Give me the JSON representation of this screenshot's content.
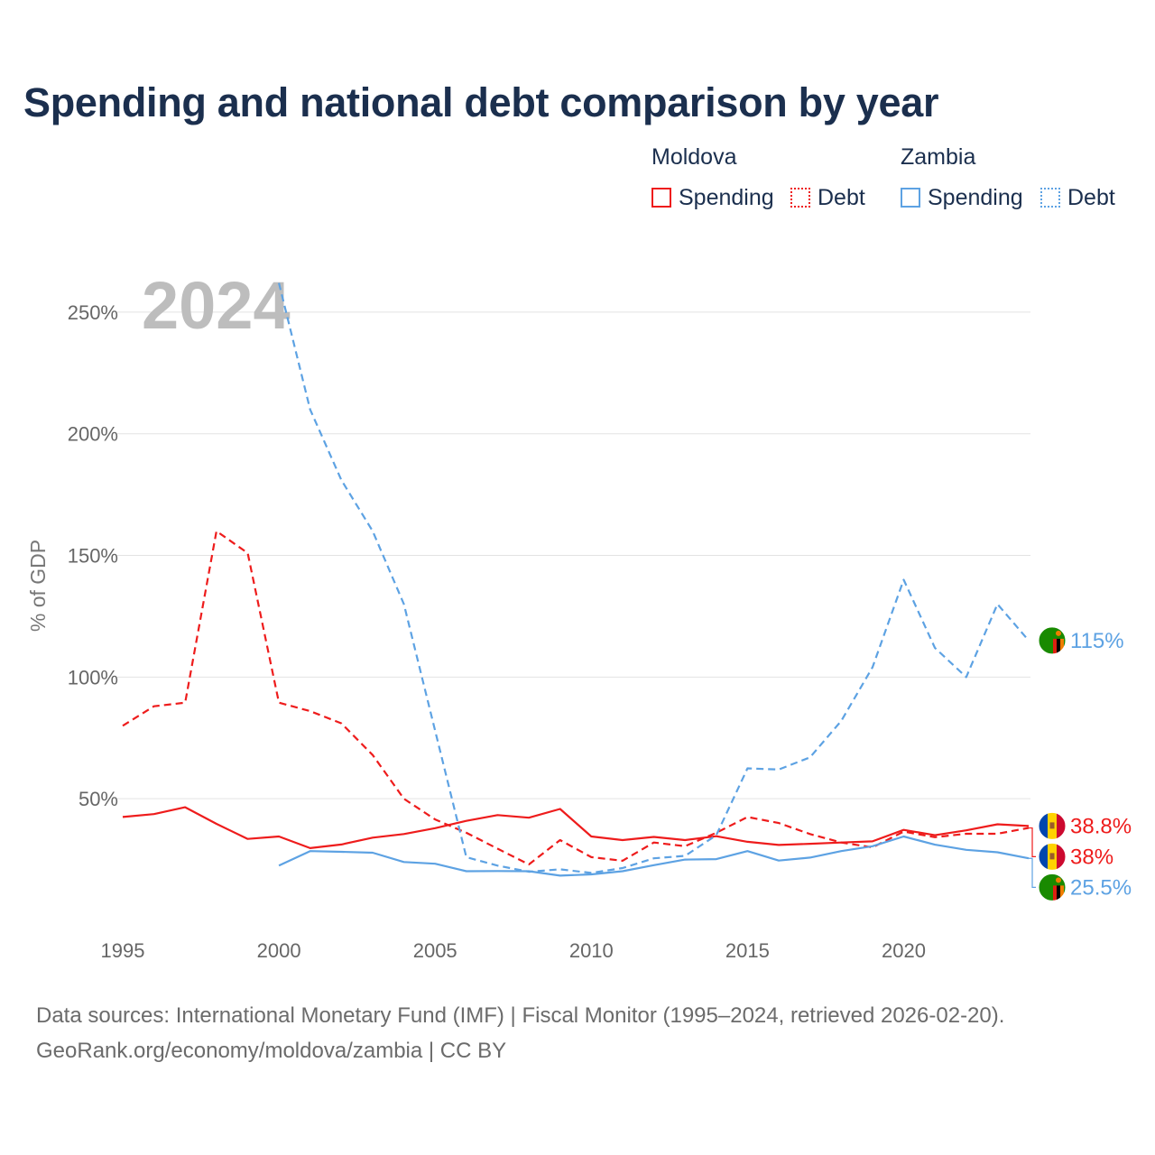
{
  "title": "Spending and national debt comparison by year",
  "legend": {
    "groups": [
      {
        "name": "Moldova",
        "items": [
          "Spending",
          "Debt"
        ]
      },
      {
        "name": "Zambia",
        "items": [
          "Spending",
          "Debt"
        ]
      }
    ]
  },
  "source": {
    "line1": "Data sources: International Monetary Fund (IMF) | Fiscal Monitor (1995–2024, retrieved 2026-02-20).",
    "line2": "GeoRank.org/economy/moldova/zambia | CC BY"
  },
  "colors": {
    "moldova": "#ee1c1c",
    "zambia": "#5da2e3"
  },
  "chart_data": {
    "type": "line",
    "title": "Spending and national debt comparison by year",
    "ylabel": "% of GDP",
    "xlabel": "",
    "watermark_year": "2024",
    "xlim": [
      1995,
      2024
    ],
    "ylim": [
      0,
      270
    ],
    "x_ticks": [
      1995,
      2000,
      2005,
      2010,
      2015,
      2020
    ],
    "y_ticks": [
      50,
      100,
      150,
      200,
      250
    ],
    "y_tick_labels": [
      "50%",
      "100%",
      "150%",
      "200%",
      "250%"
    ],
    "x": [
      1995,
      1996,
      1997,
      1998,
      1999,
      2000,
      2001,
      2002,
      2003,
      2004,
      2005,
      2006,
      2007,
      2008,
      2009,
      2010,
      2011,
      2012,
      2013,
      2014,
      2015,
      2016,
      2017,
      2018,
      2019,
      2020,
      2021,
      2022,
      2023,
      2024
    ],
    "series": [
      {
        "name": "Moldova Spending",
        "country": "moldova",
        "dash": false,
        "end_label": "38.8%",
        "values": [
          42.5,
          43.7,
          46.5,
          39.7,
          33.5,
          34.5,
          29.7,
          31.2,
          34,
          35.5,
          37.9,
          40.9,
          43.3,
          42.2,
          45.8,
          34.5,
          33,
          34.3,
          33,
          34.6,
          32.3,
          31,
          31.5,
          32,
          32.5,
          37.2,
          35,
          37,
          39.5,
          38.8
        ]
      },
      {
        "name": "Moldova Debt",
        "country": "moldova",
        "dash": true,
        "end_label": "38%",
        "values": [
          80,
          88,
          89.5,
          160,
          151,
          89.5,
          86,
          81,
          68,
          50,
          41.5,
          36,
          29.5,
          23,
          33,
          26,
          24.5,
          32,
          30.5,
          36,
          42.5,
          40,
          35.5,
          32,
          30,
          36.5,
          34.2,
          35.6,
          35.6,
          38
        ]
      },
      {
        "name": "Zambia Spending",
        "country": "zambia",
        "dash": false,
        "end_label": "25.5%",
        "values": [
          null,
          null,
          null,
          null,
          null,
          22.5,
          28.5,
          28.2,
          27.8,
          24,
          23.3,
          20.2,
          20.3,
          20.2,
          18.4,
          18.9,
          20.2,
          22.7,
          25,
          25.2,
          28.5,
          24.6,
          25.8,
          28.5,
          30.5,
          34.5,
          31.1,
          29,
          28,
          25.5
        ]
      },
      {
        "name": "Zambia Debt",
        "country": "zambia",
        "dash": true,
        "end_label": "115%",
        "values": [
          null,
          null,
          null,
          null,
          null,
          262,
          210,
          181,
          160,
          130,
          78,
          26,
          22.5,
          20,
          21,
          19.5,
          21.5,
          25.5,
          26.5,
          35,
          62.5,
          62,
          67,
          82,
          104,
          140,
          112,
          100,
          130,
          115
        ]
      }
    ]
  }
}
